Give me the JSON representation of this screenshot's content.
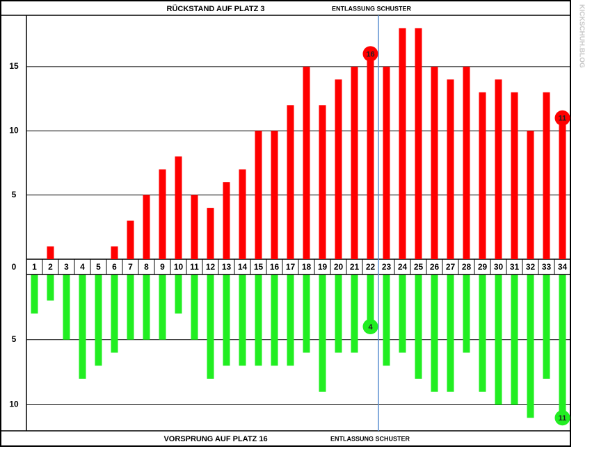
{
  "chart_data": {
    "type": "bar",
    "categories": [
      1,
      2,
      3,
      4,
      5,
      6,
      7,
      8,
      9,
      10,
      11,
      12,
      13,
      14,
      15,
      16,
      17,
      18,
      19,
      20,
      21,
      22,
      23,
      24,
      25,
      26,
      27,
      28,
      29,
      30,
      31,
      32,
      33,
      34
    ],
    "series": [
      {
        "name": "RÜCKSTAND AUF PLATZ 3",
        "color": "#ff0000",
        "direction": "up",
        "values": [
          0,
          1,
          0,
          0,
          0,
          1,
          3,
          5,
          7,
          8,
          5,
          4,
          6,
          7,
          10,
          10,
          12,
          15,
          12,
          14,
          15,
          16,
          15,
          18,
          18,
          15,
          14,
          15,
          13,
          14,
          13,
          10,
          13,
          11
        ],
        "ylim": [
          0,
          19
        ],
        "yticks": [
          0,
          5,
          10,
          15
        ],
        "labeled_categories": [
          22,
          34
        ]
      },
      {
        "name": "VORSPRUNG AUF PLATZ 16",
        "color": "#22ee22",
        "direction": "down",
        "values": [
          3,
          2,
          5,
          8,
          7,
          6,
          5,
          5,
          5,
          3,
          5,
          8,
          7,
          7,
          7,
          7,
          7,
          6,
          9,
          6,
          6,
          4,
          7,
          6,
          8,
          9,
          9,
          6,
          9,
          10,
          10,
          11,
          8,
          11
        ],
        "ylim": [
          0,
          12
        ],
        "yticks": [
          5,
          10
        ],
        "labeled_categories": [
          22,
          34
        ]
      }
    ],
    "event": {
      "label": "ENTLASSUNG SCHUSTER",
      "after_category": 22,
      "color": "#5b8fd0"
    },
    "source": "KICKSCHUH.BLOG",
    "grid": true
  }
}
